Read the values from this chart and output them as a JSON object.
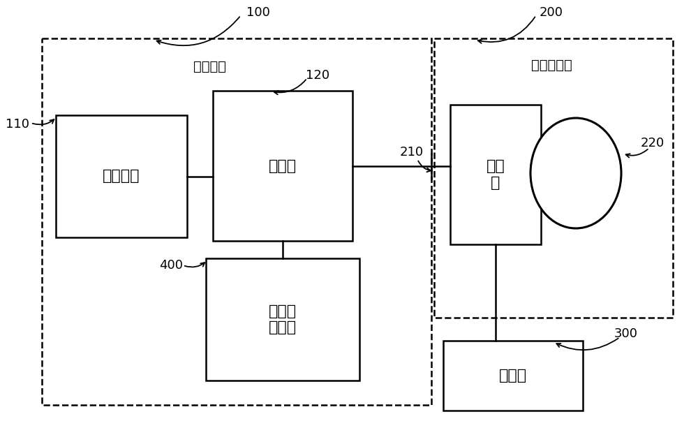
{
  "bg_color": "#ffffff",
  "lc": "#000000",
  "fig_width": 10.0,
  "fig_height": 6.23,
  "font_size_box": 16,
  "font_size_label": 14,
  "font_size_ref": 13,
  "labels": {
    "100": "100",
    "200": "200",
    "110": "110",
    "120": "120",
    "210": "210",
    "220": "220",
    "300": "300",
    "400": "400",
    "test_part": "测试部分",
    "tested_part": "被测试部分",
    "central_unit": "中控单元",
    "test_head": "测试头",
    "probe_card": "探针\n卡",
    "probe_stage": "探针台",
    "test_service": "测试服\n务系统"
  }
}
